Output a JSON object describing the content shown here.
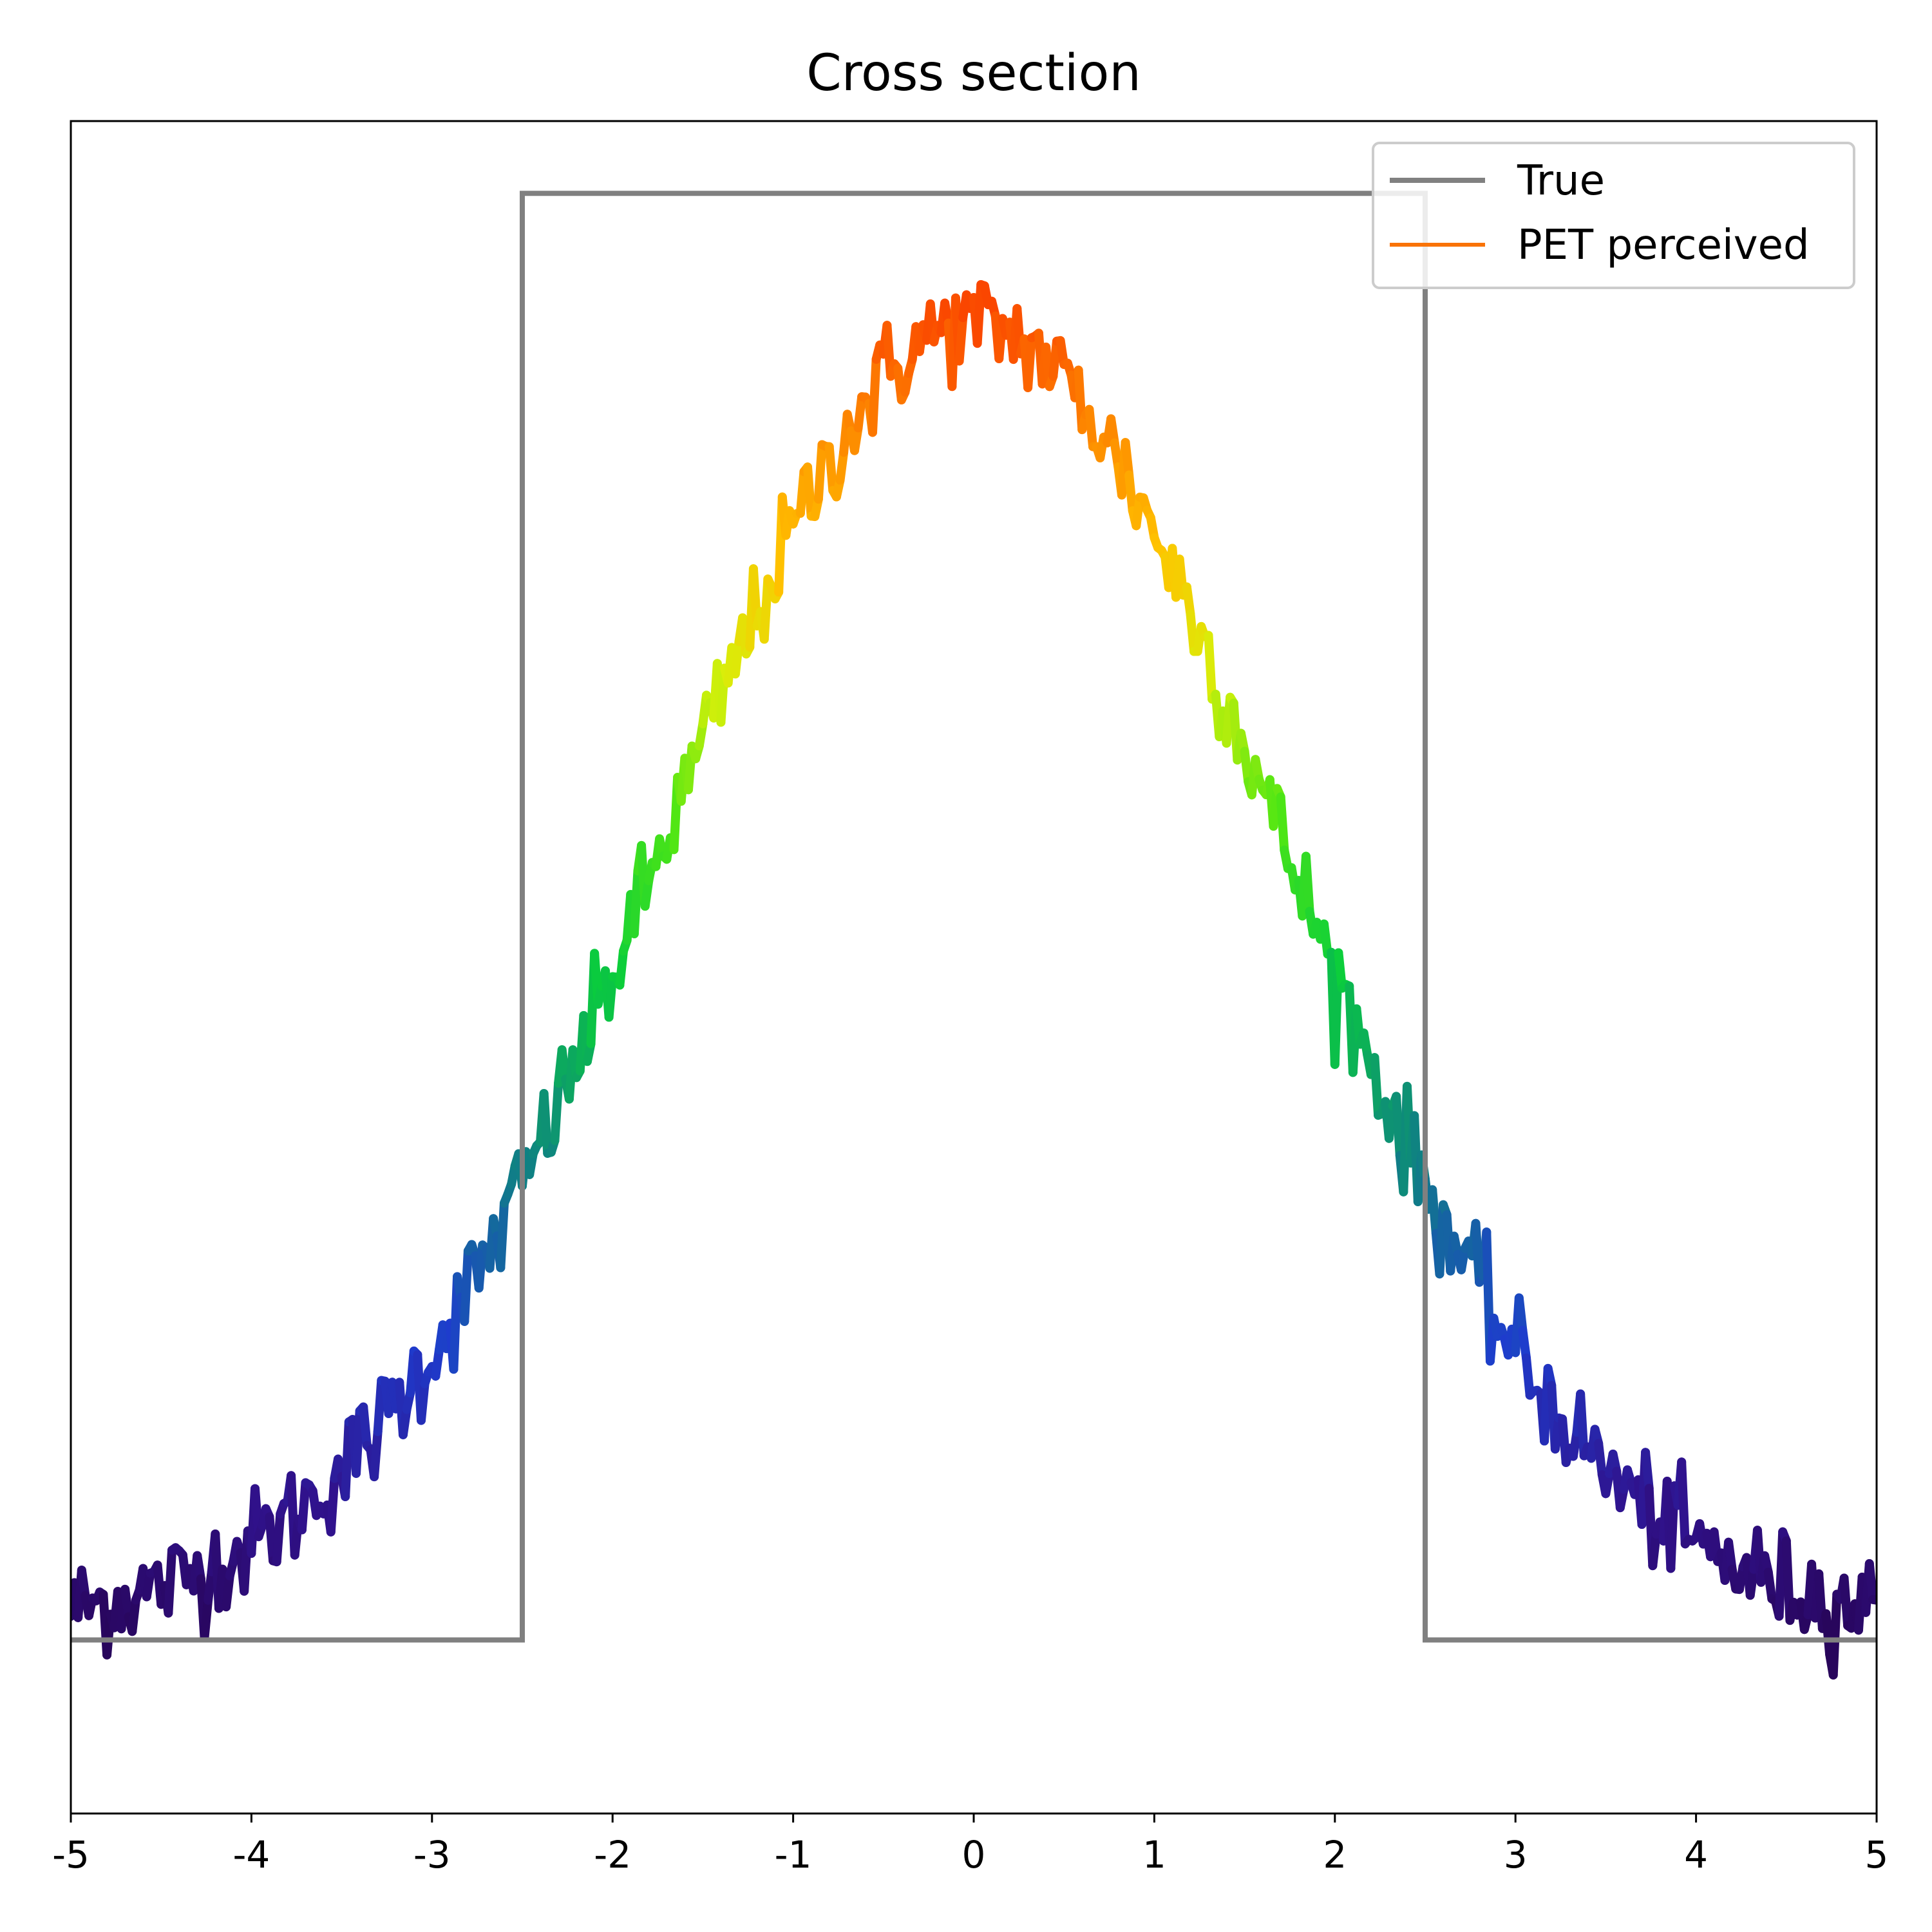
{
  "chart_data": {
    "type": "line",
    "title": "Cross section",
    "xlabel": "",
    "ylabel": "",
    "xlim": [
      -5,
      5
    ],
    "ylim": [
      -0.12,
      1.05
    ],
    "x_ticks": [
      -5,
      -4,
      -3,
      -2,
      -1,
      0,
      1,
      2,
      3,
      4,
      5
    ],
    "x_tick_labels": [
      "-5",
      "-4",
      "-3",
      "-2",
      "-1",
      "0",
      "1",
      "2",
      "3",
      "4",
      "5"
    ],
    "y_ticks_visible": false,
    "grid": false,
    "legend": {
      "placement": "top-right",
      "entries": [
        "True",
        "PET perceived"
      ]
    },
    "series": [
      {
        "name": "True",
        "kind": "step",
        "color": "#808080",
        "x": [
          -5,
          -2.5,
          -2.5,
          2.5,
          2.5,
          5
        ],
        "y": [
          0,
          0,
          1,
          1,
          0,
          0
        ]
      },
      {
        "name": "PET perceived",
        "kind": "gaussian-noisy",
        "legend_color": "#F97306",
        "colormap": "turbo-like (dark purple → blue → teal → green → yellow → orange → red-orange)",
        "peak": 0.9,
        "center": 0,
        "sigma": 1.7,
        "x": [
          -5.0,
          -4.5,
          -4.0,
          -3.5,
          -3.0,
          -2.5,
          -2.0,
          -1.5,
          -1.0,
          -0.5,
          0.0,
          0.5,
          1.0,
          1.5,
          2.0,
          2.5,
          3.0,
          3.5,
          4.0,
          4.5,
          5.0
        ],
        "y": [
          0.02,
          0.02,
          0.05,
          0.13,
          0.26,
          0.4,
          0.59,
          0.72,
          0.81,
          0.88,
          0.9,
          0.88,
          0.8,
          0.69,
          0.55,
          0.42,
          0.27,
          0.15,
          0.06,
          0.03,
          0.02
        ]
      }
    ]
  }
}
